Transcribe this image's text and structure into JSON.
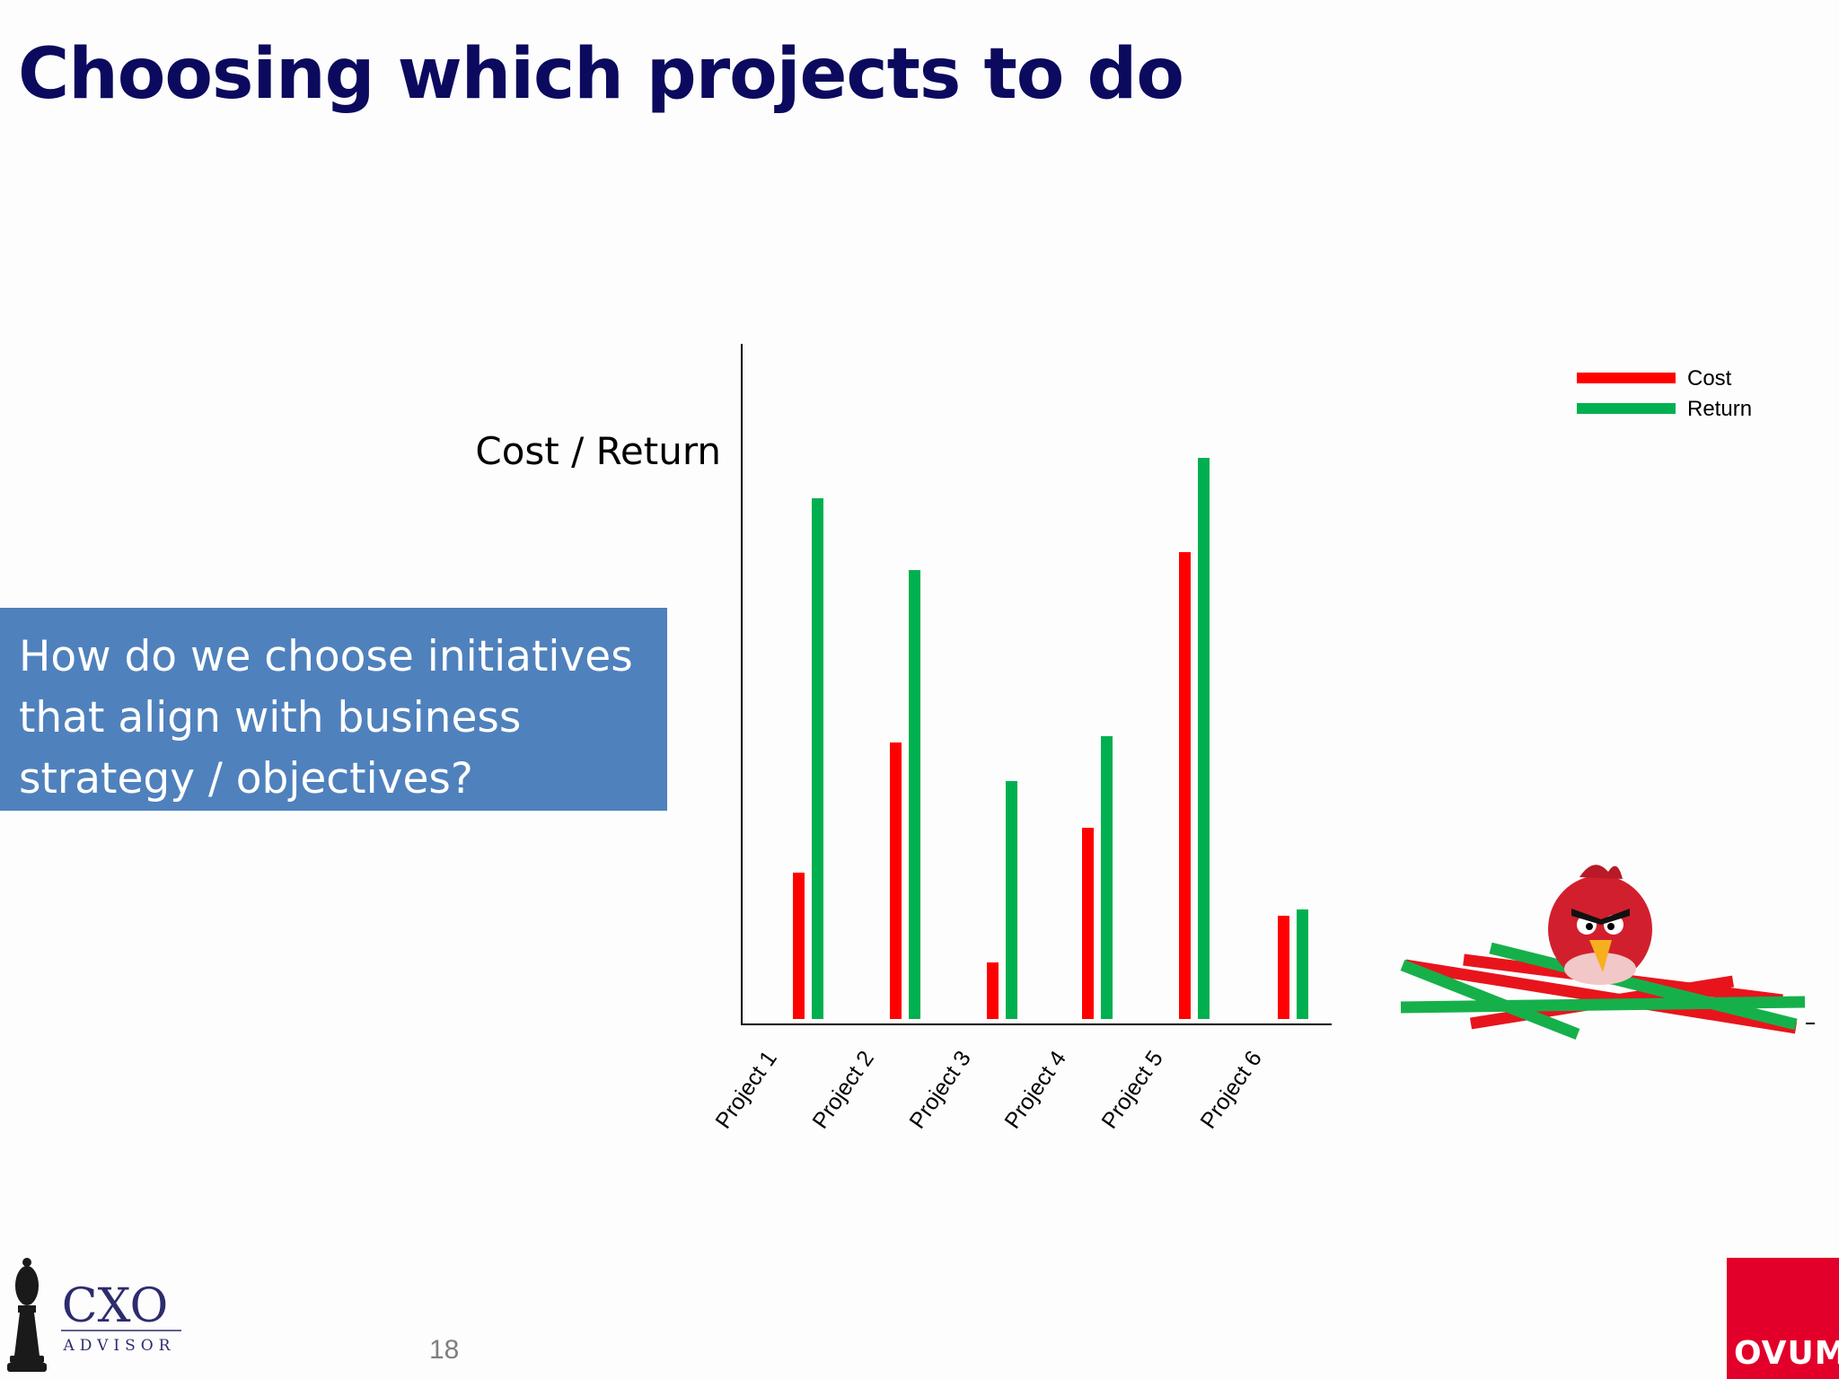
{
  "slide": {
    "title": "Choosing which projects to do",
    "callout_lines": [
      "How do we choose initiatives",
      "that align with business",
      "strategy / objectives?"
    ],
    "page_number": "18"
  },
  "logos": {
    "cxo_main": "CXO",
    "cxo_sub": "ADVISOR",
    "ovum": "OVUM"
  },
  "chart_data": {
    "type": "bar",
    "ylabel": "Cost / Return",
    "categories": [
      "Project 1",
      "Project 2",
      "Project 3",
      "Project 4",
      "Project 5",
      "Project 6"
    ],
    "series": [
      {
        "name": "Cost",
        "color": "#ff0000",
        "values": [
          16.3,
          30.8,
          6.3,
          21.3,
          52.0,
          11.5
        ]
      },
      {
        "name": "Return",
        "color": "#00b050",
        "values": [
          58.0,
          50.0,
          26.5,
          31.5,
          62.5,
          12.2
        ]
      }
    ],
    "ylim": [
      0,
      76
    ],
    "legend": "top-right",
    "grid": false
  },
  "colors": {
    "title": "#0b0a5e",
    "callout_bg": "#4f81bd",
    "ovum_red": "#e2002b"
  }
}
